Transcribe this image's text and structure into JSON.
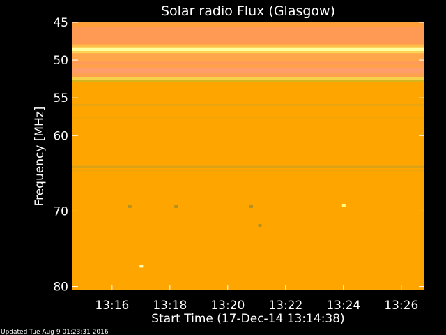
{
  "chart_data": {
    "type": "heatmap",
    "title": "Solar radio Flux (Glasgow)",
    "ylabel": "Frequency [MHz]",
    "xlabel": "Start Time (17-Dec-14 13:14:38)",
    "footer": "Updated Tue Aug  9 01:23:31 2016",
    "x_range_minutes": [
      14.63,
      26.8
    ],
    "x_ticks": [
      {
        "value": 16,
        "label": "13:16"
      },
      {
        "value": 18,
        "label": "13:18"
      },
      {
        "value": 20,
        "label": "13:20"
      },
      {
        "value": 22,
        "label": "13:22"
      },
      {
        "value": 24,
        "label": "13:24"
      },
      {
        "value": 26,
        "label": "13:26"
      }
    ],
    "y_range": [
      45,
      80.5
    ],
    "y_ticks": [
      45,
      50,
      55,
      60,
      70,
      80
    ],
    "background_color": "#ffa500",
    "bands": [
      {
        "y0": 45.0,
        "y1": 45.6,
        "color": "#ff9f3a"
      },
      {
        "y0": 45.6,
        "y1": 47.9,
        "color": "#ff9a55"
      },
      {
        "y0": 47.9,
        "y1": 48.2,
        "color": "#ffb84a"
      },
      {
        "y0": 48.2,
        "y1": 48.4,
        "color": "#ffcf5a"
      },
      {
        "y0": 48.4,
        "y1": 48.8,
        "color": "#ffffa0"
      },
      {
        "y0": 48.8,
        "y1": 49.1,
        "color": "#ffd35a"
      },
      {
        "y0": 49.1,
        "y1": 50.2,
        "color": "#ffa64a"
      },
      {
        "y0": 50.2,
        "y1": 50.6,
        "color": "#ff9b5a"
      },
      {
        "y0": 50.6,
        "y1": 51.1,
        "color": "#ffa04a"
      },
      {
        "y0": 51.1,
        "y1": 51.7,
        "color": "#ff9e6a"
      },
      {
        "y0": 51.7,
        "y1": 52.3,
        "color": "#ffa14e"
      },
      {
        "y0": 52.3,
        "y1": 52.6,
        "color": "#f5d24a"
      },
      {
        "y0": 52.6,
        "y1": 52.9,
        "color": "#d6b41e"
      },
      {
        "y0": 55.8,
        "y1": 56.1,
        "color": "#eaa410"
      },
      {
        "y0": 57.5,
        "y1": 57.7,
        "color": "#f0a608"
      },
      {
        "y0": 64.0,
        "y1": 64.3,
        "color": "#dba218"
      },
      {
        "y0": 64.5,
        "y1": 64.7,
        "color": "#e8a410"
      }
    ],
    "spots": [
      {
        "x": 24.0,
        "y": 69.3,
        "color": "#ffff80"
      },
      {
        "x": 17.0,
        "y": 77.3,
        "color": "#ffffc0"
      },
      {
        "x": 16.6,
        "y": 69.4,
        "color": "#b89020"
      },
      {
        "x": 18.2,
        "y": 69.4,
        "color": "#b89020"
      },
      {
        "x": 20.8,
        "y": 69.4,
        "color": "#b89020"
      },
      {
        "x": 21.1,
        "y": 71.9,
        "color": "#b89020"
      }
    ]
  }
}
